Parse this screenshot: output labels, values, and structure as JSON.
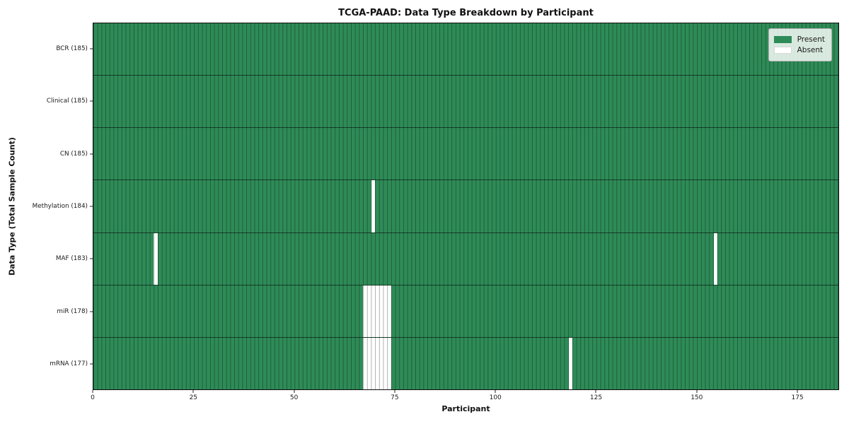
{
  "figure": {
    "title": "TCGA-PAAD: Data Type Breakdown by Participant",
    "xlabel": "Participant",
    "ylabel": "Data Type (Total Sample Count)"
  },
  "legend": {
    "items": [
      {
        "label": "Present",
        "color": "#2e8b57",
        "name": "legend-swatch-present"
      },
      {
        "label": "Absent",
        "color": "#ffffff",
        "name": "legend-swatch-absent"
      }
    ]
  },
  "chart_data": {
    "type": "heatmap",
    "title": "TCGA-PAAD: Data Type Breakdown by Participant",
    "xlabel": "Participant",
    "ylabel": "Data Type (Total Sample Count)",
    "x_ticks": [
      0,
      25,
      50,
      75,
      100,
      125,
      150,
      175
    ],
    "x_range": [
      0,
      185
    ],
    "n_participants": 185,
    "grid": true,
    "legend_position": "upper right",
    "present_color": "#2e8b57",
    "absent_color": "#ffffff",
    "rows": [
      {
        "label": "BCR (185)",
        "data_type": "BCR",
        "total": 185,
        "absent_participants": []
      },
      {
        "label": "Clinical (185)",
        "data_type": "Clinical",
        "total": 185,
        "absent_participants": []
      },
      {
        "label": "CN (185)",
        "data_type": "CN",
        "total": 185,
        "absent_participants": []
      },
      {
        "label": "Methylation (184)",
        "data_type": "Methylation",
        "total": 184,
        "absent_participants": [
          69
        ]
      },
      {
        "label": "MAF (183)",
        "data_type": "MAF",
        "total": 183,
        "absent_participants": [
          15,
          154
        ]
      },
      {
        "label": "miR (178)",
        "data_type": "miR",
        "total": 178,
        "absent_participants": [
          67,
          68,
          69,
          70,
          71,
          72,
          73
        ]
      },
      {
        "label": "mRNA (177)",
        "data_type": "mRNA",
        "total": 177,
        "absent_participants": [
          67,
          68,
          69,
          70,
          71,
          72,
          73,
          118
        ]
      }
    ]
  }
}
